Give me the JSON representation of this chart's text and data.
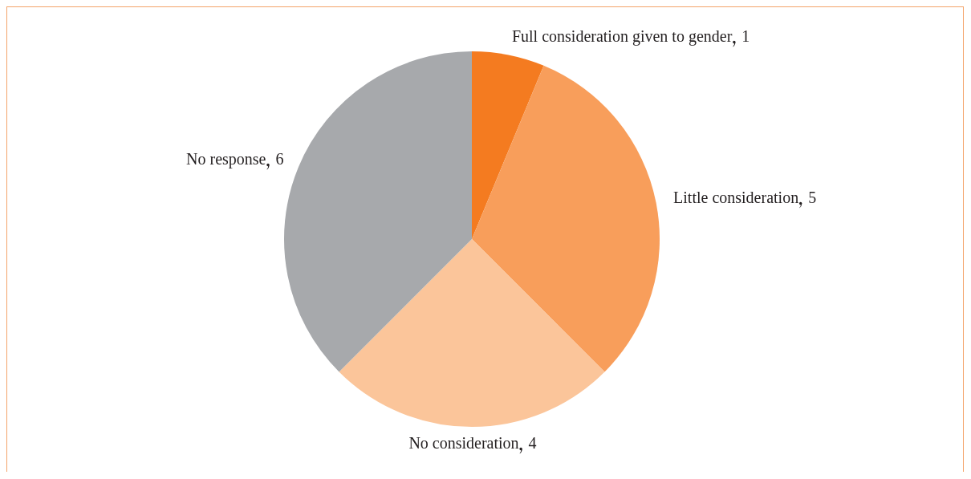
{
  "chart_data": {
    "type": "pie",
    "categories": [
      "Full consideration given to gender",
      "Little consideration",
      "No consideration",
      "No response"
    ],
    "values": [
      1,
      5,
      4,
      6
    ],
    "colors": [
      "#f47b20",
      "#f89e5b",
      "#fbc59a",
      "#a7a9ac"
    ],
    "data_labels": true,
    "legend": false
  }
}
